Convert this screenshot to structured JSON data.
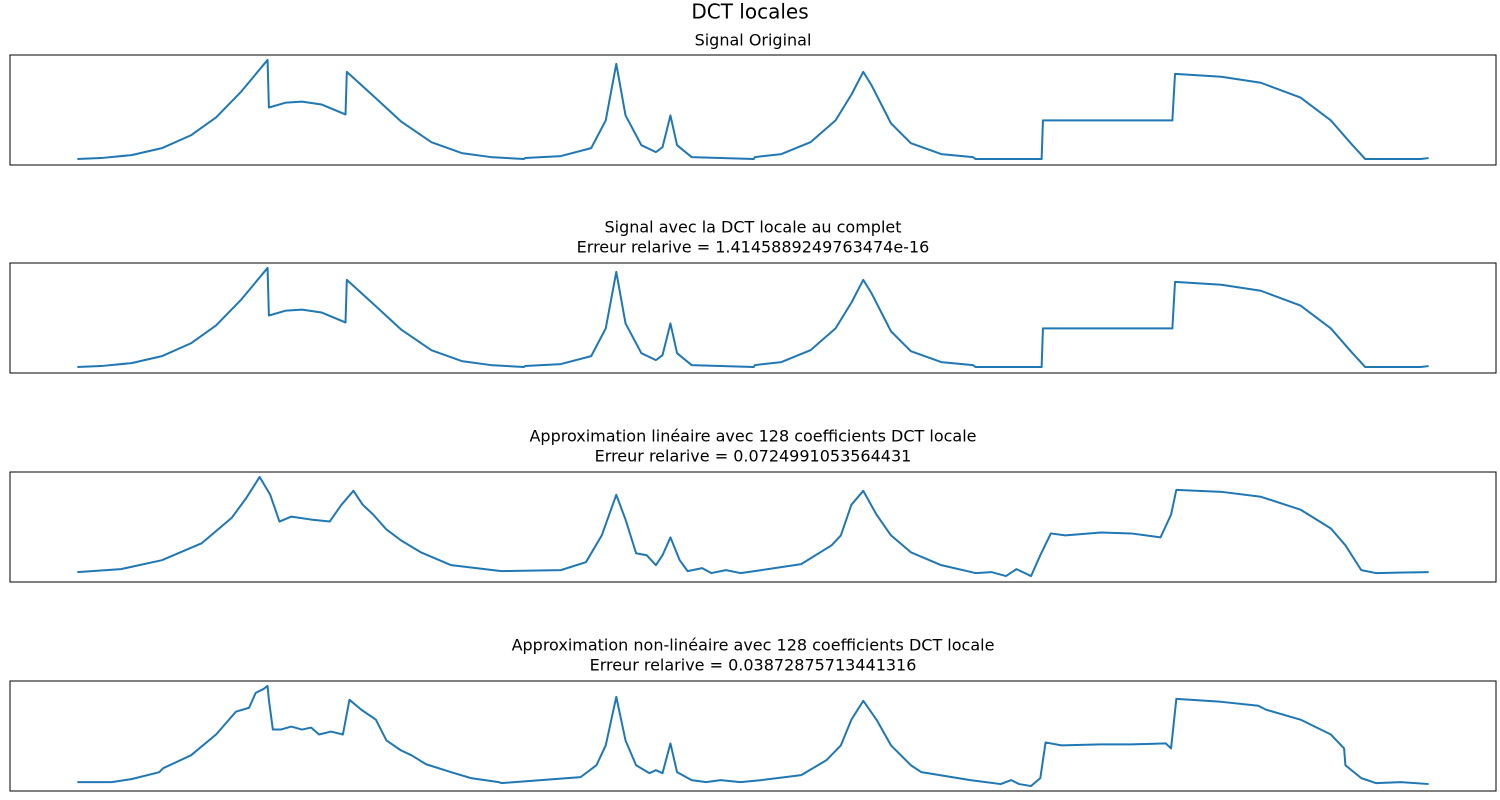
{
  "title": "DCT locales",
  "chart_data": [
    {
      "type": "line",
      "title": "Signal Original",
      "color": "#1f77b4",
      "xlim": [
        -51,
        1074
      ],
      "ylim": [
        -0.06,
        1.05
      ],
      "x": [
        0,
        18,
        41,
        64,
        86,
        105,
        124,
        144,
        145,
        158,
        170,
        185,
        203,
        204,
        223,
        245,
        268,
        291,
        313,
        338,
        339,
        366,
        389,
        400,
        408,
        415,
        427,
        438,
        443,
        449,
        454,
        465,
        487,
        512,
        513,
        533,
        555,
        574,
        586,
        595,
        601,
        616,
        631,
        654,
        678,
        680,
        730,
        731,
        829,
        831,
        866,
        896,
        926,
        949,
        964,
        975,
        1017,
        1023
      ],
      "values": [
        0,
        0.01,
        0.04,
        0.11,
        0.24,
        0.42,
        0.68,
        1.0,
        0.52,
        0.57,
        0.58,
        0.55,
        0.45,
        0.88,
        0.65,
        0.38,
        0.17,
        0.06,
        0.02,
        0,
        0.01,
        0.03,
        0.11,
        0.39,
        0.96,
        0.44,
        0.14,
        0.07,
        0.12,
        0.44,
        0.14,
        0.02,
        0.01,
        0,
        0.02,
        0.05,
        0.17,
        0.39,
        0.65,
        0.88,
        0.75,
        0.36,
        0.16,
        0.05,
        0.02,
        0,
        0,
        0.39,
        0.39,
        0.86,
        0.83,
        0.77,
        0.62,
        0.39,
        0.16,
        0,
        0,
        0.01
      ]
    },
    {
      "type": "line",
      "title": "Signal avec la DCT locale au complet",
      "subtitle": "Erreur relarive = 1.4145889249763474e-16",
      "color": "#1f77b4",
      "xlim": [
        -51,
        1074
      ],
      "ylim": [
        -0.06,
        1.05
      ],
      "x": [
        0,
        18,
        41,
        64,
        86,
        105,
        124,
        144,
        145,
        158,
        170,
        185,
        203,
        204,
        223,
        245,
        268,
        291,
        313,
        338,
        339,
        366,
        389,
        400,
        408,
        415,
        427,
        438,
        443,
        449,
        454,
        465,
        487,
        512,
        513,
        533,
        555,
        574,
        586,
        595,
        601,
        616,
        631,
        654,
        678,
        680,
        730,
        731,
        829,
        831,
        866,
        896,
        926,
        949,
        964,
        975,
        1017,
        1023
      ],
      "values": [
        0,
        0.01,
        0.04,
        0.11,
        0.24,
        0.42,
        0.68,
        1.0,
        0.52,
        0.57,
        0.58,
        0.55,
        0.45,
        0.88,
        0.65,
        0.38,
        0.17,
        0.06,
        0.02,
        0,
        0.01,
        0.03,
        0.11,
        0.39,
        0.96,
        0.44,
        0.14,
        0.07,
        0.12,
        0.44,
        0.14,
        0.02,
        0.01,
        0,
        0.02,
        0.05,
        0.17,
        0.39,
        0.65,
        0.88,
        0.75,
        0.36,
        0.16,
        0.05,
        0.02,
        0,
        0,
        0.39,
        0.39,
        0.86,
        0.83,
        0.77,
        0.62,
        0.39,
        0.16,
        0,
        0,
        0.01
      ]
    },
    {
      "type": "line",
      "title": "Approximation linéaire avec 128 coefficients DCT locale",
      "subtitle": "Erreur relarive = 0.0724991053564431",
      "color": "#1f77b4",
      "xlim": [
        -51,
        1074
      ],
      "ylim": [
        -0.06,
        1.05
      ],
      "x": [
        0,
        33,
        64,
        94,
        117,
        128,
        138,
        146,
        153,
        162,
        177,
        191,
        200,
        209,
        216,
        224,
        234,
        245,
        260,
        283,
        321,
        366,
        385,
        397,
        408,
        415,
        423,
        431,
        438,
        443,
        449,
        456,
        462,
        473,
        480,
        491,
        502,
        518,
        548,
        571,
        578,
        586,
        595,
        605,
        616,
        631,
        654,
        680,
        692,
        703,
        711,
        722,
        729,
        737,
        748,
        775,
        798,
        820,
        828,
        832,
        866,
        896,
        926,
        949,
        960,
        972,
        983,
        1023
      ],
      "values": [
        0.04,
        0.07,
        0.16,
        0.33,
        0.59,
        0.79,
        1.0,
        0.82,
        0.55,
        0.6,
        0.57,
        0.55,
        0.72,
        0.86,
        0.72,
        0.62,
        0.47,
        0.36,
        0.24,
        0.11,
        0.05,
        0.06,
        0.14,
        0.41,
        0.82,
        0.57,
        0.23,
        0.21,
        0.11,
        0.21,
        0.39,
        0.16,
        0.05,
        0.08,
        0.03,
        0.06,
        0.03,
        0.06,
        0.12,
        0.31,
        0.41,
        0.72,
        0.86,
        0.62,
        0.41,
        0.24,
        0.11,
        0.03,
        0.04,
        0,
        0.07,
        0,
        0.21,
        0.43,
        0.41,
        0.44,
        0.43,
        0.39,
        0.62,
        0.87,
        0.85,
        0.8,
        0.67,
        0.48,
        0.31,
        0.06,
        0.03,
        0.04
      ]
    },
    {
      "type": "line",
      "title": "Approximation non-linéaire avec 128 coefficients DCT locale",
      "subtitle": "Erreur relarive = 0.03872875713441316",
      "color": "#1f77b4",
      "xlim": [
        -51,
        1074
      ],
      "ylim": [
        -0.06,
        1.05
      ],
      "x": [
        0,
        26,
        41,
        62,
        65,
        86,
        105,
        120,
        130,
        135,
        141,
        144,
        145,
        148,
        154,
        162,
        170,
        177,
        183,
        192,
        201,
        206,
        215,
        226,
        234,
        245,
        253,
        264,
        283,
        298,
        319,
        321,
        351,
        381,
        393,
        400,
        408,
        415,
        423,
        433,
        438,
        443,
        449,
        454,
        465,
        476,
        487,
        502,
        518,
        548,
        567,
        578,
        586,
        595,
        605,
        616,
        631,
        639,
        676,
        699,
        707,
        713,
        722,
        729,
        733,
        745,
        775,
        798,
        824,
        828,
        832,
        866,
        894,
        900,
        926,
        949,
        959,
        960,
        972,
        983,
        1002,
        1023
      ],
      "values": [
        0.03,
        0.03,
        0.06,
        0.13,
        0.17,
        0.3,
        0.51,
        0.74,
        0.78,
        0.93,
        0.97,
        1.0,
        0.86,
        0.56,
        0.56,
        0.59,
        0.56,
        0.58,
        0.51,
        0.54,
        0.51,
        0.86,
        0.76,
        0.66,
        0.45,
        0.35,
        0.3,
        0.21,
        0.13,
        0.07,
        0.03,
        0.02,
        0.05,
        0.08,
        0.2,
        0.4,
        0.89,
        0.45,
        0.2,
        0.12,
        0.15,
        0.12,
        0.42,
        0.13,
        0.05,
        0.03,
        0.05,
        0.03,
        0.05,
        0.1,
        0.25,
        0.4,
        0.66,
        0.85,
        0.66,
        0.4,
        0.2,
        0.13,
        0.05,
        0.01,
        0.05,
        0.01,
        -0.01,
        0.07,
        0.43,
        0.4,
        0.41,
        0.41,
        0.42,
        0.37,
        0.87,
        0.84,
        0.8,
        0.76,
        0.66,
        0.51,
        0.37,
        0.2,
        0.07,
        0.02,
        0.03,
        0.01
      ]
    }
  ]
}
